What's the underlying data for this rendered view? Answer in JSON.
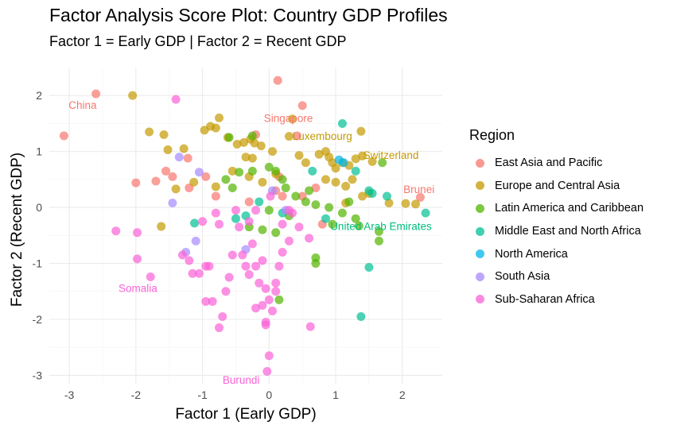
{
  "page": {
    "title": "Factor Analysis Score Plot: Country GDP Profiles",
    "subtitle": "Factor 1 = Early GDP | Factor 2 = Recent GDP"
  },
  "chart_data": {
    "type": "scatter",
    "xlabel": "Factor 1 (Early GDP)",
    "ylabel": "Factor 2 (Recent GDP)",
    "xlim": [
      -3.3,
      2.6
    ],
    "ylim": [
      -3.15,
      2.5
    ],
    "xticks": [
      -3,
      -2,
      -1,
      0,
      1,
      2
    ],
    "yticks": [
      -3,
      -2,
      -1,
      0,
      1,
      2
    ],
    "grid": true,
    "legend_title": "Region",
    "legend_position": "right",
    "series": [
      {
        "name": "East Asia and Pacific",
        "color": "#F8766D",
        "points": [
          [
            -3.08,
            1.28
          ],
          [
            -2.6,
            2.03
          ],
          [
            -2.0,
            0.44
          ],
          [
            -1.7,
            0.47
          ],
          [
            -1.55,
            0.65
          ],
          [
            -1.22,
            0.88
          ],
          [
            -1.2,
            0.35
          ],
          [
            -1.45,
            0.55
          ],
          [
            -0.95,
            0.55
          ],
          [
            -0.2,
            1.3
          ],
          [
            0.13,
            2.27
          ],
          [
            0.5,
            1.82
          ],
          [
            0.15,
            0.55
          ],
          [
            0.1,
            0.3
          ],
          [
            0.2,
            0.2
          ],
          [
            0.5,
            0.2
          ],
          [
            0.8,
            -0.3
          ],
          [
            0.42,
            1.28
          ],
          [
            2.27,
            0.18
          ],
          [
            -0.8,
            0.2
          ],
          [
            -0.3,
            0.1
          ],
          [
            0.7,
            0.35
          ]
        ]
      },
      {
        "name": "Europe and Central Asia",
        "color": "#C49A00",
        "points": [
          [
            -2.05,
            2.0
          ],
          [
            -1.8,
            1.35
          ],
          [
            -1.58,
            1.3
          ],
          [
            -1.52,
            1.03
          ],
          [
            -1.28,
            1.05
          ],
          [
            -1.4,
            0.33
          ],
          [
            -1.13,
            0.45
          ],
          [
            -1.62,
            -0.34
          ],
          [
            -0.97,
            1.38
          ],
          [
            -0.88,
            1.45
          ],
          [
            -0.75,
            1.6
          ],
          [
            -0.8,
            1.42
          ],
          [
            -0.62,
            1.25
          ],
          [
            -0.48,
            1.13
          ],
          [
            -0.38,
            1.16
          ],
          [
            -0.28,
            1.22
          ],
          [
            -0.22,
            1.15
          ],
          [
            -0.12,
            1.1
          ],
          [
            -0.35,
            0.9
          ],
          [
            -0.25,
            0.88
          ],
          [
            0.05,
            1.0
          ],
          [
            0.35,
            1.58
          ],
          [
            0.3,
            1.27
          ],
          [
            0.45,
            0.93
          ],
          [
            0.55,
            0.8
          ],
          [
            0.75,
            0.95
          ],
          [
            0.85,
            1.0
          ],
          [
            0.9,
            0.9
          ],
          [
            0.95,
            0.8
          ],
          [
            1.0,
            0.7
          ],
          [
            1.1,
            0.8
          ],
          [
            1.2,
            0.75
          ],
          [
            1.3,
            0.87
          ],
          [
            1.4,
            0.92
          ],
          [
            1.55,
            0.82
          ],
          [
            1.38,
            1.36
          ],
          [
            0.85,
            0.5
          ],
          [
            1.0,
            0.45
          ],
          [
            1.15,
            0.38
          ],
          [
            1.25,
            0.5
          ],
          [
            1.4,
            0.2
          ],
          [
            1.5,
            0.25
          ],
          [
            1.8,
            0.08
          ],
          [
            2.05,
            0.07
          ],
          [
            2.2,
            0.06
          ],
          [
            -0.55,
            0.65
          ],
          [
            -0.3,
            0.55
          ],
          [
            -0.1,
            0.45
          ],
          [
            0.1,
            0.6
          ],
          [
            -0.8,
            0.37
          ],
          [
            1.15,
            0.08
          ]
        ]
      },
      {
        "name": "Latin America and Caribbean",
        "color": "#53B400",
        "points": [
          [
            -0.6,
            1.25
          ],
          [
            -0.25,
            1.28
          ],
          [
            -0.45,
            0.63
          ],
          [
            -0.65,
            0.5
          ],
          [
            -0.55,
            0.35
          ],
          [
            -0.25,
            0.65
          ],
          [
            0.0,
            0.72
          ],
          [
            0.1,
            0.65
          ],
          [
            0.2,
            0.5
          ],
          [
            0.25,
            0.35
          ],
          [
            0.4,
            0.2
          ],
          [
            0.55,
            0.1
          ],
          [
            0.6,
            0.3
          ],
          [
            0.7,
            0.05
          ],
          [
            0.9,
            0.0
          ],
          [
            0.95,
            -0.3
          ],
          [
            1.1,
            -0.1
          ],
          [
            1.3,
            -0.2
          ],
          [
            1.35,
            -0.33
          ],
          [
            1.65,
            -0.43
          ],
          [
            1.65,
            -0.6
          ],
          [
            1.7,
            0.8
          ],
          [
            -0.3,
            -0.35
          ],
          [
            -0.1,
            -0.4
          ],
          [
            0.1,
            -0.45
          ],
          [
            0.0,
            -0.05
          ],
          [
            0.3,
            -0.15
          ],
          [
            0.7,
            -0.9
          ],
          [
            0.7,
            -1.0
          ],
          [
            0.15,
            -1.65
          ],
          [
            1.2,
            0.1
          ]
        ]
      },
      {
        "name": "Middle East and North Africa",
        "color": "#00C094",
        "points": [
          [
            -1.12,
            -0.28
          ],
          [
            -0.5,
            -0.2
          ],
          [
            -0.15,
            0.1
          ],
          [
            0.2,
            -0.1
          ],
          [
            0.65,
            0.65
          ],
          [
            0.85,
            -0.2
          ],
          [
            1.1,
            1.5
          ],
          [
            1.3,
            0.65
          ],
          [
            1.5,
            0.3
          ],
          [
            1.55,
            0.25
          ],
          [
            1.77,
            0.2
          ],
          [
            2.35,
            -0.1
          ],
          [
            1.38,
            -1.95
          ],
          [
            1.5,
            -1.07
          ],
          [
            -0.35,
            -0.15
          ]
        ]
      },
      {
        "name": "North America",
        "color": "#00B6EB",
        "points": [
          [
            1.05,
            0.85
          ],
          [
            1.12,
            0.8
          ]
        ]
      },
      {
        "name": "South Asia",
        "color": "#A58AFF",
        "points": [
          [
            -1.35,
            0.9
          ],
          [
            -1.45,
            0.08
          ],
          [
            -1.05,
            0.63
          ],
          [
            -1.1,
            -0.6
          ],
          [
            -1.25,
            -0.8
          ],
          [
            -0.35,
            -0.75
          ],
          [
            0.05,
            0.3
          ],
          [
            0.25,
            -0.05
          ]
        ]
      },
      {
        "name": "Sub-Saharan Africa",
        "color": "#FB61D7",
        "points": [
          [
            -2.3,
            -0.42
          ],
          [
            -1.98,
            -0.45
          ],
          [
            -1.98,
            -0.92
          ],
          [
            -1.78,
            -1.24
          ],
          [
            -1.4,
            1.93
          ],
          [
            -1.3,
            -0.85
          ],
          [
            -1.15,
            -1.18
          ],
          [
            -1.2,
            -0.95
          ],
          [
            -1.0,
            -0.25
          ],
          [
            -1.05,
            -1.18
          ],
          [
            -0.95,
            -1.05
          ],
          [
            -0.9,
            -1.05
          ],
          [
            -0.95,
            -1.68
          ],
          [
            -0.85,
            -1.68
          ],
          [
            -0.75,
            -2.15
          ],
          [
            -0.7,
            -1.95
          ],
          [
            -0.65,
            -1.5
          ],
          [
            -0.6,
            -1.25
          ],
          [
            -0.55,
            -0.85
          ],
          [
            -0.45,
            -0.35
          ],
          [
            -0.35,
            -1.05
          ],
          [
            -0.3,
            -0.25
          ],
          [
            -0.25,
            -0.65
          ],
          [
            -0.2,
            -1.05
          ],
          [
            -0.15,
            -1.35
          ],
          [
            -0.1,
            -0.95
          ],
          [
            -0.05,
            -1.45
          ],
          [
            0.0,
            -1.65
          ],
          [
            -0.05,
            -2.05
          ],
          [
            -0.1,
            -1.75
          ],
          [
            -0.2,
            -1.8
          ],
          [
            0.1,
            -1.5
          ],
          [
            0.15,
            -1.05
          ],
          [
            0.2,
            -0.3
          ],
          [
            0.3,
            -0.6
          ],
          [
            0.35,
            -0.1
          ],
          [
            0.45,
            -0.35
          ],
          [
            0.6,
            -0.55
          ],
          [
            0.2,
            -0.8
          ],
          [
            0.1,
            -1.35
          ],
          [
            -0.05,
            -2.1
          ],
          [
            -0.5,
            -0.05
          ],
          [
            -0.4,
            -0.85
          ],
          [
            -0.3,
            -1.2
          ],
          [
            -0.8,
            -0.1
          ],
          [
            -0.75,
            -0.3
          ],
          [
            0.05,
            -1.85
          ],
          [
            0.62,
            -2.13
          ],
          [
            0.0,
            -2.65
          ],
          [
            -0.03,
            -2.93
          ],
          [
            -0.2,
            -0.05
          ],
          [
            0.02,
            0.2
          ],
          [
            0.3,
            -0.05
          ]
        ]
      }
    ],
    "annotations": [
      {
        "text": "China",
        "x": -2.8,
        "y": 1.83,
        "color": "#F8766D"
      },
      {
        "text": "Singapore",
        "x": 0.29,
        "y": 1.6,
        "color": "#F8766D"
      },
      {
        "text": "Luxembourg",
        "x": 0.8,
        "y": 1.28,
        "color": "#C49A00"
      },
      {
        "text": "Switzerland",
        "x": 1.83,
        "y": 0.94,
        "color": "#C49A00"
      },
      {
        "text": "Brunei",
        "x": 2.25,
        "y": 0.33,
        "color": "#F8766D"
      },
      {
        "text": "United Arab Emirates",
        "x": 1.68,
        "y": -0.33,
        "color": "#00BF7D"
      },
      {
        "text": "Somalia",
        "x": -1.97,
        "y": -1.44,
        "color": "#FB61D7"
      },
      {
        "text": "Burundi",
        "x": -0.42,
        "y": -3.08,
        "color": "#FB61D7"
      }
    ]
  }
}
